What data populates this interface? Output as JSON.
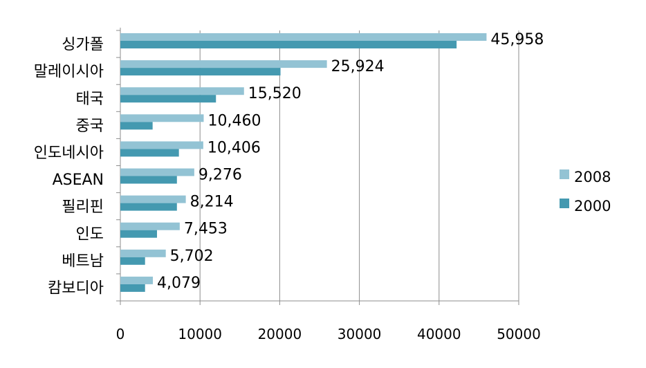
{
  "chart_data": {
    "type": "bar",
    "orientation": "horizontal",
    "title": "",
    "xlabel": "",
    "ylabel": "",
    "categories": [
      "싱가폴",
      "말레이시아",
      "태국",
      "중국",
      "인도네시아",
      "ASEAN",
      "필리핀",
      "인도",
      "베트남",
      "캄보디아"
    ],
    "series": [
      {
        "name": "2008",
        "color": "#93c3d4",
        "values": [
          45958,
          25924,
          15520,
          10460,
          10406,
          9276,
          8214,
          7453,
          5702,
          4079
        ],
        "data_labels": [
          "45,958",
          "25,924",
          "15,520",
          "10,460",
          "10,406",
          "9,276",
          "8,214",
          "7,453",
          "5,702",
          "4,079"
        ]
      },
      {
        "name": "2000",
        "color": "#4499b0",
        "values": [
          42200,
          20100,
          12000,
          4050,
          7350,
          7100,
          7100,
          4600,
          3100,
          3100
        ]
      }
    ],
    "xlim": [
      0,
      50000
    ],
    "xticks": [
      "0",
      "10000",
      "20000",
      "30000",
      "40000",
      "50000"
    ],
    "grid": "vertical",
    "legend_position": "right"
  }
}
